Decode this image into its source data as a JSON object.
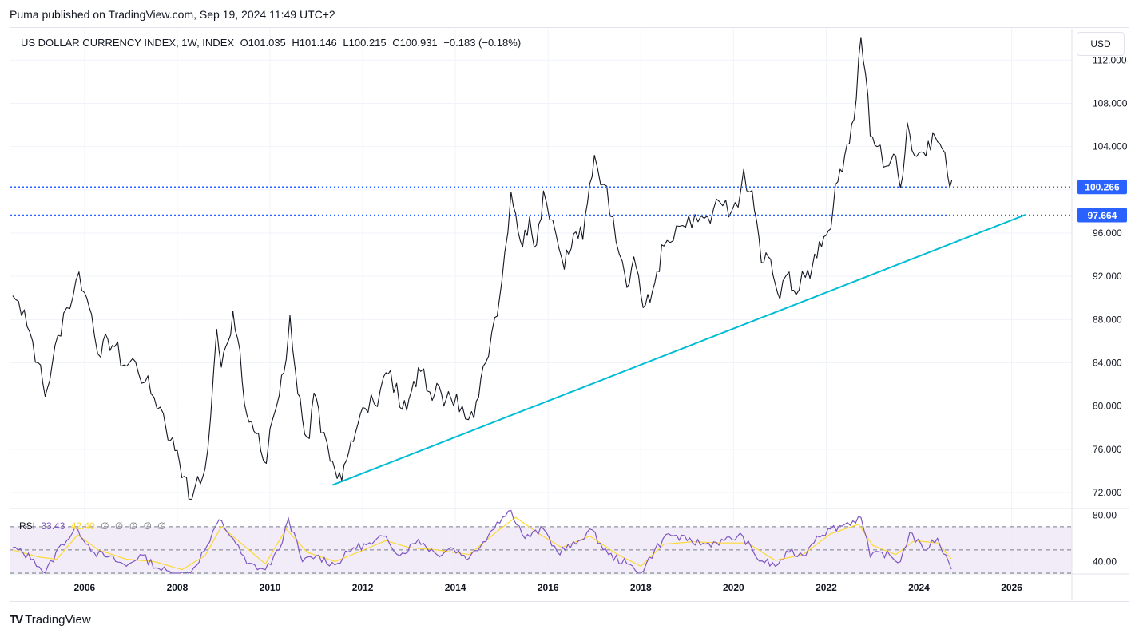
{
  "header": {
    "published": "Puma published on TradingView.com, Sep 19, 2024 11:49 UTC+2"
  },
  "legend": {
    "symbol": "US DOLLAR CURRENCY INDEX, 1W, INDEX",
    "open": "O101.035",
    "high": "H101.146",
    "low": "L100.215",
    "close": "C100.931",
    "change": "−0.183 (−0.18%)"
  },
  "currency_button": "USD",
  "rsi_legend": {
    "label": "RSI",
    "rsi_value": "33.43",
    "ma_value": "42.40",
    "extra": [
      "∅",
      "∅",
      "∅",
      "∅",
      "∅"
    ]
  },
  "footer": {
    "brand": "TradingView",
    "logo": "TV"
  },
  "colors": {
    "price": "#131722",
    "level_line": "#2962ff",
    "trendline": "#00bcd4",
    "rsi_line": "#7e57c2",
    "rsi_ma": "#fdd835",
    "rsi_band": "#ede7f6",
    "grid": "#f0f3fa"
  },
  "chart_data": [
    {
      "type": "line",
      "title": "US DOLLAR CURRENCY INDEX, 1W, INDEX",
      "xlabel": "",
      "ylabel": "",
      "xlim": [
        2004.4,
        2027.3
      ],
      "ylim": [
        70.6,
        114.9
      ],
      "y_ticks": [
        "72.000",
        "76.000",
        "80.000",
        "84.000",
        "88.000",
        "92.000",
        "96.000",
        "100.000",
        "104.000",
        "108.000",
        "112.000"
      ],
      "y_tick_values": [
        72,
        76,
        80,
        84,
        88,
        92,
        96,
        100,
        104,
        108,
        112
      ],
      "x_ticks": [
        "2006",
        "2008",
        "2010",
        "2012",
        "2014",
        "2016",
        "2018",
        "2020",
        "2022",
        "2024",
        "2026"
      ],
      "x_tick_values": [
        2006,
        2008,
        2010,
        2012,
        2014,
        2016,
        2018,
        2020,
        2022,
        2024,
        2026
      ],
      "grid": true,
      "series": [
        {
          "points": [
            [
              2004.45,
              90.2
            ],
            [
              2004.7,
              88.9
            ],
            [
              2005.0,
              84.0
            ],
            [
              2005.15,
              80.9
            ],
            [
              2005.3,
              83.8
            ],
            [
              2005.55,
              88.6
            ],
            [
              2005.75,
              90.1
            ],
            [
              2005.88,
              92.4
            ],
            [
              2006.0,
              90.5
            ],
            [
              2006.15,
              88.5
            ],
            [
              2006.35,
              84.5
            ],
            [
              2006.5,
              86.2
            ],
            [
              2006.65,
              85.5
            ],
            [
              2006.85,
              83.8
            ],
            [
              2007.1,
              84.1
            ],
            [
              2007.3,
              82.2
            ],
            [
              2007.5,
              80.8
            ],
            [
              2007.7,
              79.3
            ],
            [
              2007.85,
              76.8
            ],
            [
              2008.0,
              75.9
            ],
            [
              2008.15,
              73.5
            ],
            [
              2008.25,
              71.4
            ],
            [
              2008.38,
              72.5
            ],
            [
              2008.5,
              72.8
            ],
            [
              2008.6,
              74.2
            ],
            [
              2008.72,
              79.0
            ],
            [
              2008.85,
              87.1
            ],
            [
              2008.95,
              83.6
            ],
            [
              2009.1,
              86.0
            ],
            [
              2009.2,
              88.8
            ],
            [
              2009.35,
              85.2
            ],
            [
              2009.5,
              79.2
            ],
            [
              2009.65,
              77.7
            ],
            [
              2009.8,
              75.9
            ],
            [
              2009.92,
              74.7
            ],
            [
              2010.0,
              77.9
            ],
            [
              2010.2,
              81.0
            ],
            [
              2010.35,
              84.3
            ],
            [
              2010.43,
              88.4
            ],
            [
              2010.55,
              83.2
            ],
            [
              2010.7,
              78.8
            ],
            [
              2010.85,
              77.0
            ],
            [
              2010.95,
              81.2
            ],
            [
              2011.1,
              77.5
            ],
            [
              2011.3,
              74.9
            ],
            [
              2011.45,
              73.3
            ],
            [
              2011.6,
              74.6
            ],
            [
              2011.75,
              76.8
            ],
            [
              2011.9,
              78.4
            ],
            [
              2012.05,
              79.8
            ],
            [
              2012.25,
              80.2
            ],
            [
              2012.45,
              82.7
            ],
            [
              2012.6,
              83.3
            ],
            [
              2012.8,
              79.9
            ],
            [
              2012.95,
              79.6
            ],
            [
              2013.1,
              82.3
            ],
            [
              2013.25,
              83.2
            ],
            [
              2013.45,
              81.3
            ],
            [
              2013.6,
              82.1
            ],
            [
              2013.75,
              80.0
            ],
            [
              2013.9,
              80.8
            ],
            [
              2014.15,
              80.0
            ],
            [
              2014.35,
              79.5
            ],
            [
              2014.5,
              80.8
            ],
            [
              2014.65,
              84.0
            ],
            [
              2014.85,
              88.2
            ],
            [
              2015.0,
              91.5
            ],
            [
              2015.2,
              99.8
            ],
            [
              2015.3,
              97.8
            ],
            [
              2015.45,
              94.7
            ],
            [
              2015.6,
              97.5
            ],
            [
              2015.75,
              94.9
            ],
            [
              2015.9,
              99.9
            ],
            [
              2016.1,
              97.2
            ],
            [
              2016.3,
              93.6
            ],
            [
              2016.45,
              94.0
            ],
            [
              2016.6,
              96.1
            ],
            [
              2016.75,
              95.4
            ],
            [
              2016.85,
              98.8
            ],
            [
              2017.0,
              103.2
            ],
            [
              2017.2,
              100.5
            ],
            [
              2017.4,
              97.5
            ],
            [
              2017.6,
              93.4
            ],
            [
              2017.75,
              91.3
            ],
            [
              2017.85,
              93.8
            ],
            [
              2017.95,
              92.1
            ],
            [
              2018.05,
              89.1
            ],
            [
              2018.2,
              89.6
            ],
            [
              2018.35,
              92.5
            ],
            [
              2018.5,
              94.8
            ],
            [
              2018.7,
              95.3
            ],
            [
              2018.9,
              96.7
            ],
            [
              2019.1,
              96.5
            ],
            [
              2019.3,
              97.6
            ],
            [
              2019.5,
              96.9
            ],
            [
              2019.7,
              98.9
            ],
            [
              2019.9,
              97.5
            ],
            [
              2020.1,
              98.4
            ],
            [
              2020.22,
              101.9
            ],
            [
              2020.35,
              99.8
            ],
            [
              2020.5,
              97.1
            ],
            [
              2020.6,
              93.3
            ],
            [
              2020.75,
              93.8
            ],
            [
              2020.9,
              91.3
            ],
            [
              2021.0,
              89.9
            ],
            [
              2021.2,
              92.4
            ],
            [
              2021.35,
              90.3
            ],
            [
              2021.55,
              91.9
            ],
            [
              2021.7,
              92.9
            ],
            [
              2021.85,
              95.2
            ],
            [
              2022.0,
              95.8
            ],
            [
              2022.15,
              98.3
            ],
            [
              2022.3,
              101.9
            ],
            [
              2022.45,
              104.2
            ],
            [
              2022.6,
              106.5
            ],
            [
              2022.75,
              114.1
            ],
            [
              2022.85,
              110.7
            ],
            [
              2022.95,
              105.0
            ],
            [
              2023.1,
              104.0
            ],
            [
              2023.3,
              102.2
            ],
            [
              2023.45,
              103.3
            ],
            [
              2023.6,
              100.2
            ],
            [
              2023.75,
              106.2
            ],
            [
              2023.9,
              103.2
            ],
            [
              2024.05,
              103.5
            ],
            [
              2024.2,
              104.5
            ],
            [
              2024.35,
              104.9
            ],
            [
              2024.5,
              103.8
            ],
            [
              2024.62,
              101.3
            ],
            [
              2024.71,
              100.9
            ]
          ]
        }
      ],
      "horizontal_levels": [
        100.266,
        97.664
      ],
      "level_labels": [
        "100.266",
        "97.664"
      ],
      "trendline": [
        [
          2011.35,
          72.7
        ],
        [
          2026.3,
          97.7
        ]
      ]
    },
    {
      "type": "line",
      "title": "RSI",
      "ylim": [
        30,
        85
      ],
      "y_ticks": [
        "80.00",
        "40.00"
      ],
      "y_tick_values": [
        80,
        40
      ],
      "band": [
        30,
        70
      ],
      "series": [
        {
          "name": "RSI 33.43",
          "points": [
            [
              2004.45,
              52
            ],
            [
              2004.9,
              42
            ],
            [
              2005.15,
              30
            ],
            [
              2005.5,
              55
            ],
            [
              2005.85,
              68
            ],
            [
              2006.2,
              48
            ],
            [
              2006.5,
              44
            ],
            [
              2006.9,
              36
            ],
            [
              2007.2,
              46
            ],
            [
              2007.6,
              34
            ],
            [
              2008.0,
              28
            ],
            [
              2008.3,
              31
            ],
            [
              2008.7,
              57
            ],
            [
              2008.9,
              76
            ],
            [
              2009.2,
              60
            ],
            [
              2009.5,
              38
            ],
            [
              2009.9,
              33
            ],
            [
              2010.2,
              50
            ],
            [
              2010.4,
              77
            ],
            [
              2010.7,
              40
            ],
            [
              2011.0,
              45
            ],
            [
              2011.4,
              37
            ],
            [
              2011.8,
              52
            ],
            [
              2012.2,
              55
            ],
            [
              2012.5,
              62
            ],
            [
              2012.8,
              45
            ],
            [
              2013.2,
              59
            ],
            [
              2013.6,
              46
            ],
            [
              2013.9,
              52
            ],
            [
              2014.3,
              43
            ],
            [
              2014.6,
              57
            ],
            [
              2014.9,
              74
            ],
            [
              2015.2,
              84
            ],
            [
              2015.5,
              60
            ],
            [
              2015.9,
              68
            ],
            [
              2016.2,
              48
            ],
            [
              2016.6,
              55
            ],
            [
              2016.9,
              68
            ],
            [
              2017.3,
              46
            ],
            [
              2017.7,
              38
            ],
            [
              2018.0,
              30
            ],
            [
              2018.3,
              50
            ],
            [
              2018.6,
              64
            ],
            [
              2019.0,
              58
            ],
            [
              2019.4,
              55
            ],
            [
              2019.8,
              58
            ],
            [
              2020.2,
              62
            ],
            [
              2020.5,
              43
            ],
            [
              2020.9,
              36
            ],
            [
              2021.2,
              48
            ],
            [
              2021.5,
              45
            ],
            [
              2021.8,
              62
            ],
            [
              2022.1,
              68
            ],
            [
              2022.4,
              72
            ],
            [
              2022.75,
              78
            ],
            [
              2022.95,
              44
            ],
            [
              2023.2,
              48
            ],
            [
              2023.6,
              40
            ],
            [
              2023.8,
              65
            ],
            [
              2024.1,
              50
            ],
            [
              2024.4,
              60
            ],
            [
              2024.7,
              33.4
            ]
          ]
        },
        {
          "name": "MA 42.40",
          "points": [
            [
              2004.45,
              50
            ],
            [
              2005.0,
              44
            ],
            [
              2005.4,
              42
            ],
            [
              2005.85,
              63
            ],
            [
              2006.3,
              50
            ],
            [
              2006.9,
              42
            ],
            [
              2007.5,
              40
            ],
            [
              2008.1,
              33
            ],
            [
              2008.6,
              45
            ],
            [
              2008.95,
              70
            ],
            [
              2009.4,
              55
            ],
            [
              2009.9,
              38
            ],
            [
              2010.35,
              68
            ],
            [
              2010.8,
              48
            ],
            [
              2011.4,
              40
            ],
            [
              2011.9,
              48
            ],
            [
              2012.5,
              58
            ],
            [
              2013.0,
              52
            ],
            [
              2013.6,
              50
            ],
            [
              2014.3,
              46
            ],
            [
              2014.9,
              66
            ],
            [
              2015.3,
              78
            ],
            [
              2015.8,
              64
            ],
            [
              2016.3,
              52
            ],
            [
              2016.9,
              62
            ],
            [
              2017.5,
              46
            ],
            [
              2018.0,
              36
            ],
            [
              2018.5,
              55
            ],
            [
              2019.1,
              57
            ],
            [
              2019.8,
              56
            ],
            [
              2020.3,
              56
            ],
            [
              2020.9,
              41
            ],
            [
              2021.5,
              46
            ],
            [
              2022.1,
              64
            ],
            [
              2022.7,
              72
            ],
            [
              2023.0,
              54
            ],
            [
              2023.5,
              46
            ],
            [
              2023.9,
              58
            ],
            [
              2024.4,
              56
            ],
            [
              2024.7,
              42.4
            ]
          ]
        }
      ]
    }
  ]
}
